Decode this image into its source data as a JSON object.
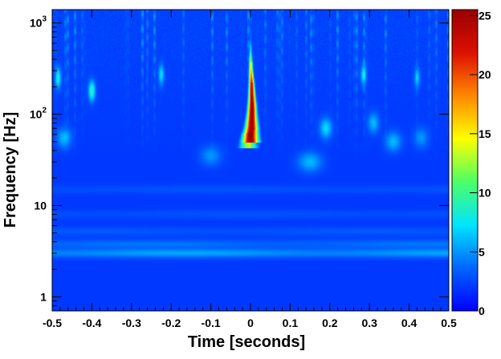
{
  "chart_data": {
    "type": "heatmap",
    "title": "",
    "xlabel": "Time [seconds]",
    "ylabel": "Frequency [Hz]",
    "xlim": [
      -0.5,
      0.5
    ],
    "ylim": [
      0.7,
      1400
    ],
    "y_scale": "log",
    "x_ticks": [
      {
        "value": -0.5,
        "label": "-0.5"
      },
      {
        "value": -0.4,
        "label": "-0.4"
      },
      {
        "value": -0.3,
        "label": "-0.3"
      },
      {
        "value": -0.2,
        "label": "-0.2"
      },
      {
        "value": -0.1,
        "label": "-0.1"
      },
      {
        "value": 0,
        "label": "0"
      },
      {
        "value": 0.1,
        "label": "0.1"
      },
      {
        "value": 0.2,
        "label": "0.2"
      },
      {
        "value": 0.3,
        "label": "0.3"
      },
      {
        "value": 0.4,
        "label": "0.4"
      },
      {
        "value": 0.5,
        "label": "0.5"
      }
    ],
    "y_ticks": [
      {
        "value": 1,
        "base": "1",
        "exp": ""
      },
      {
        "value": 10,
        "base": "10",
        "exp": ""
      },
      {
        "value": 100,
        "base": "10",
        "exp": "2"
      },
      {
        "value": 1000,
        "base": "10",
        "exp": "3"
      }
    ],
    "colorbar": {
      "range": [
        0,
        25.5
      ],
      "ticks": [
        {
          "value": 0,
          "label": "0"
        },
        {
          "value": 5,
          "label": "5"
        },
        {
          "value": 10,
          "label": "10"
        },
        {
          "value": 15,
          "label": "15"
        },
        {
          "value": 20,
          "label": "20"
        },
        {
          "value": 25,
          "label": "25"
        }
      ],
      "colormap": [
        "#0000ff",
        "#0066ff",
        "#00e5ff",
        "#4dff66",
        "#ffff00",
        "#ff8800",
        "#dd1100",
        "#9a0000"
      ]
    },
    "background_energy": 2,
    "features": [
      {
        "name": "chirp-track",
        "points": [
          {
            "t": -0.005,
            "f": 48,
            "v": 13
          },
          {
            "t": 0.0,
            "f": 55,
            "v": 26
          },
          {
            "t": 0.003,
            "f": 75,
            "v": 26
          },
          {
            "t": 0.004,
            "f": 120,
            "v": 26
          },
          {
            "t": 0.003,
            "f": 200,
            "v": 24
          },
          {
            "t": 0.001,
            "f": 330,
            "v": 15
          },
          {
            "t": 0.0,
            "f": 500,
            "v": 7
          },
          {
            "t": 0.0,
            "f": 700,
            "v": 3.5
          }
        ]
      },
      {
        "name": "blip",
        "t": -0.4,
        "f": 180,
        "v": 7
      },
      {
        "name": "blip",
        "t": -0.485,
        "f": 250,
        "v": 6
      },
      {
        "name": "blip",
        "t": -0.225,
        "f": 270,
        "v": 5
      },
      {
        "name": "blip",
        "t": 0.285,
        "f": 270,
        "v": 5
      },
      {
        "name": "blip",
        "t": 0.42,
        "f": 250,
        "v": 4
      },
      {
        "name": "blip",
        "t": 0.19,
        "f": 70,
        "v": 5
      },
      {
        "name": "blip",
        "t": 0.31,
        "f": 80,
        "v": 4
      },
      {
        "name": "blip",
        "t": 0.36,
        "f": 50,
        "v": 4
      },
      {
        "name": "blip",
        "t": 0.15,
        "f": 30,
        "v": 4
      },
      {
        "name": "blip",
        "t": -0.47,
        "f": 55,
        "v": 4
      },
      {
        "name": "blip",
        "t": -0.1,
        "f": 35,
        "v": 3
      },
      {
        "name": "blip",
        "t": 0.43,
        "f": 55,
        "v": 3
      }
    ],
    "bands": [
      {
        "f": 3.0,
        "v": 5.5
      },
      {
        "f": 3.8,
        "v": 4.0
      },
      {
        "f": 5.2,
        "v": 3.2
      },
      {
        "f": 8.0,
        "v": 3.0
      },
      {
        "f": 15,
        "v": 3.0
      }
    ]
  }
}
